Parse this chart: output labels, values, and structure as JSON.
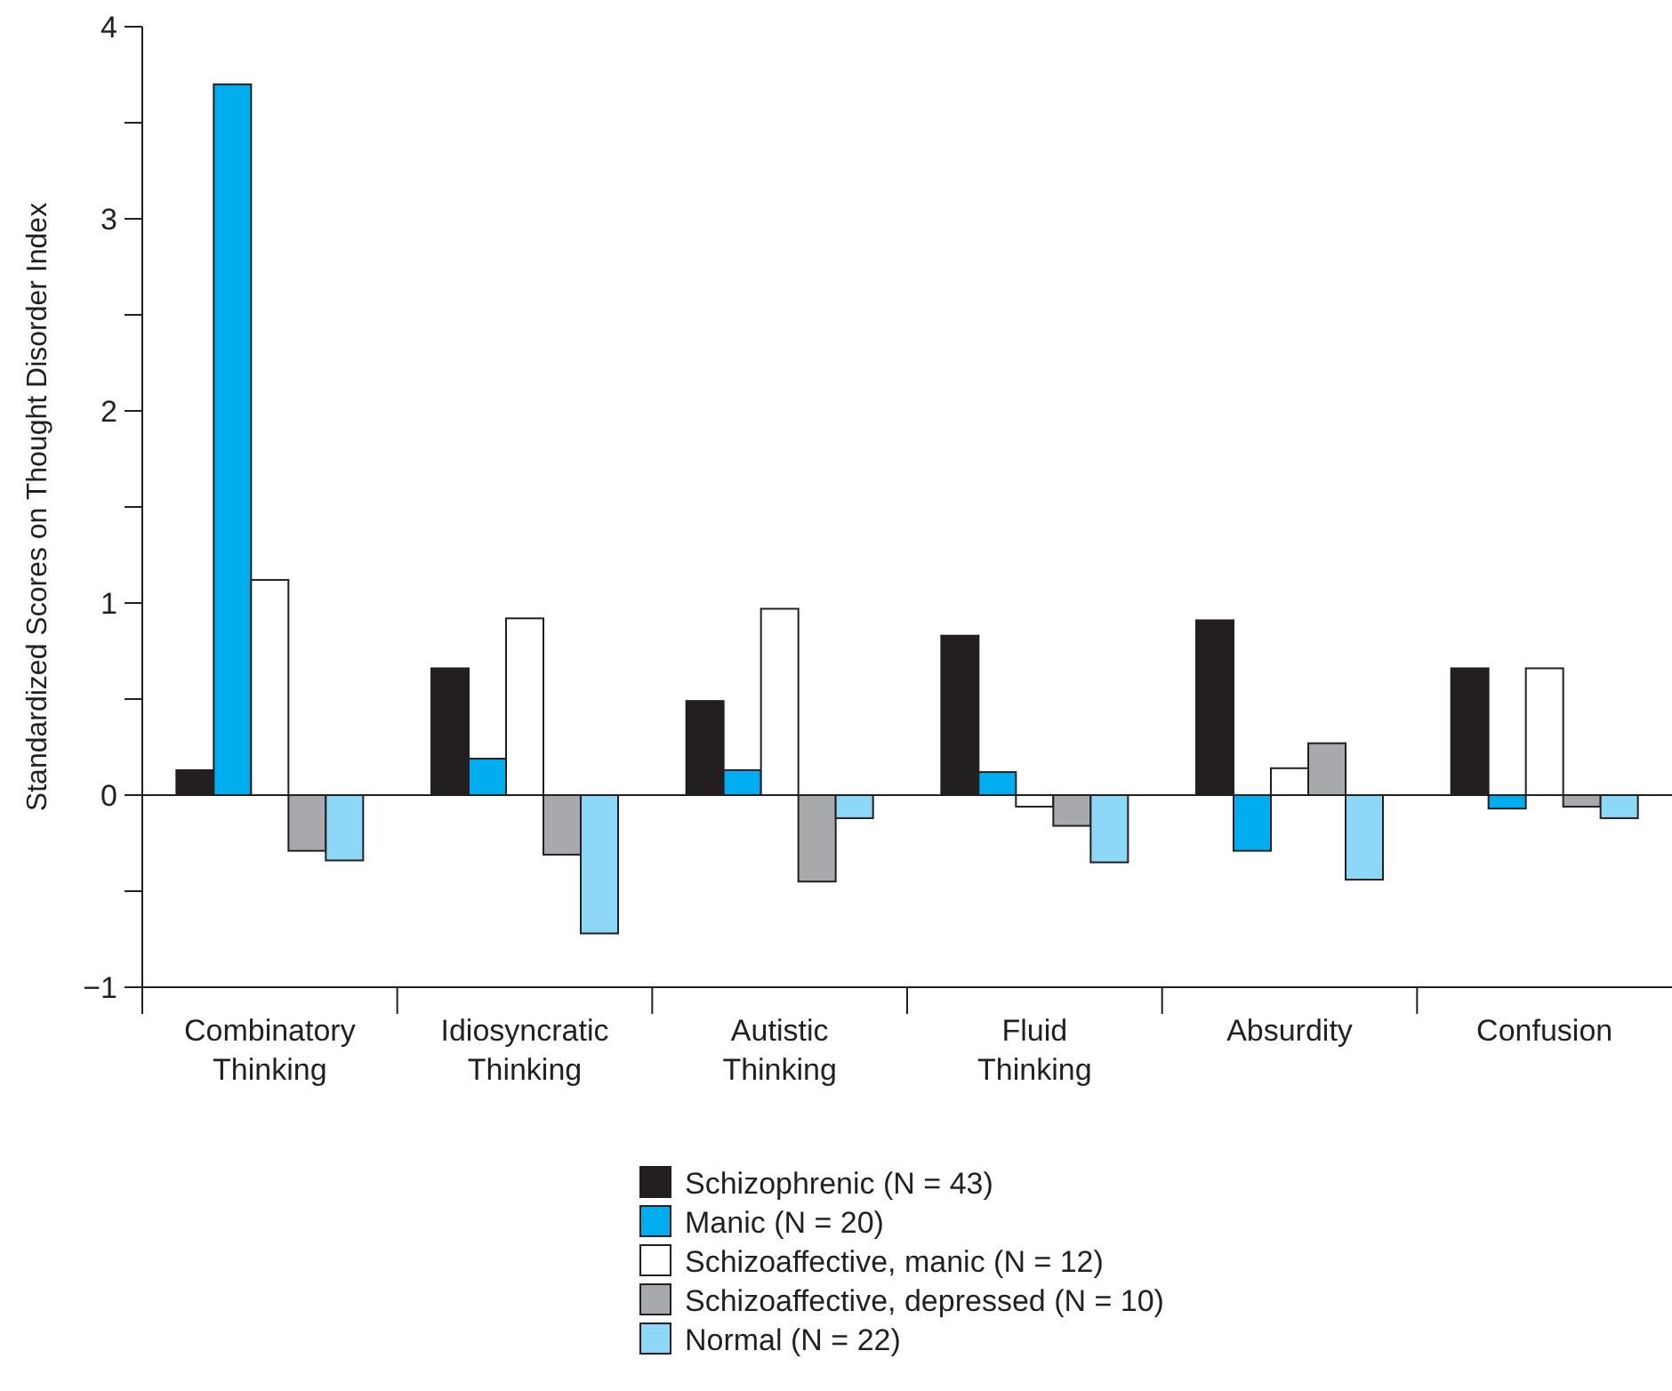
{
  "chart_data": {
    "type": "bar",
    "ylabel": "Standardized Scores on Thought Disorder Index",
    "categories": [
      "Combinatory Thinking",
      "Idiosyncratic Thinking",
      "Autistic Thinking",
      "Fluid Thinking",
      "Absurdity",
      "Confusion"
    ],
    "series": [
      {
        "name": "Schizophrenic (N = 43)",
        "color": "#231f20",
        "values": [
          0.13,
          0.66,
          0.49,
          0.83,
          0.91,
          0.66
        ]
      },
      {
        "name": "Manic (N = 20)",
        "color": "#00aeef",
        "values": [
          3.7,
          0.19,
          0.13,
          0.12,
          -0.29,
          -0.07
        ]
      },
      {
        "name": "Schizoaffective, manic (N = 12)",
        "color": "#ffffff",
        "values": [
          1.12,
          0.92,
          0.97,
          -0.06,
          0.14,
          0.66
        ]
      },
      {
        "name": "Schizoaffective, depressed (N = 10)",
        "color": "#a7a9ac",
        "values": [
          -0.29,
          -0.31,
          -0.45,
          -0.16,
          0.27,
          -0.06
        ]
      },
      {
        "name": "Normal (N = 22)",
        "color": "#8dd8f8",
        "values": [
          -0.34,
          -0.72,
          -0.12,
          -0.35,
          -0.44,
          -0.12
        ]
      }
    ],
    "ylim": [
      -1,
      4
    ],
    "yticks": [
      {
        "value": -1,
        "label": "−1"
      },
      {
        "value": -0.5,
        "label": null
      },
      0,
      {
        "value": 0.5,
        "label": null
      },
      1,
      {
        "value": 1.5,
        "label": null
      },
      2,
      {
        "value": 2.5,
        "label": null
      },
      3,
      {
        "value": 3.5,
        "label": null
      },
      4
    ],
    "ref_lines": [
      {
        "axis": "y",
        "value": 0
      }
    ],
    "grid": false,
    "legend": "bottom"
  }
}
